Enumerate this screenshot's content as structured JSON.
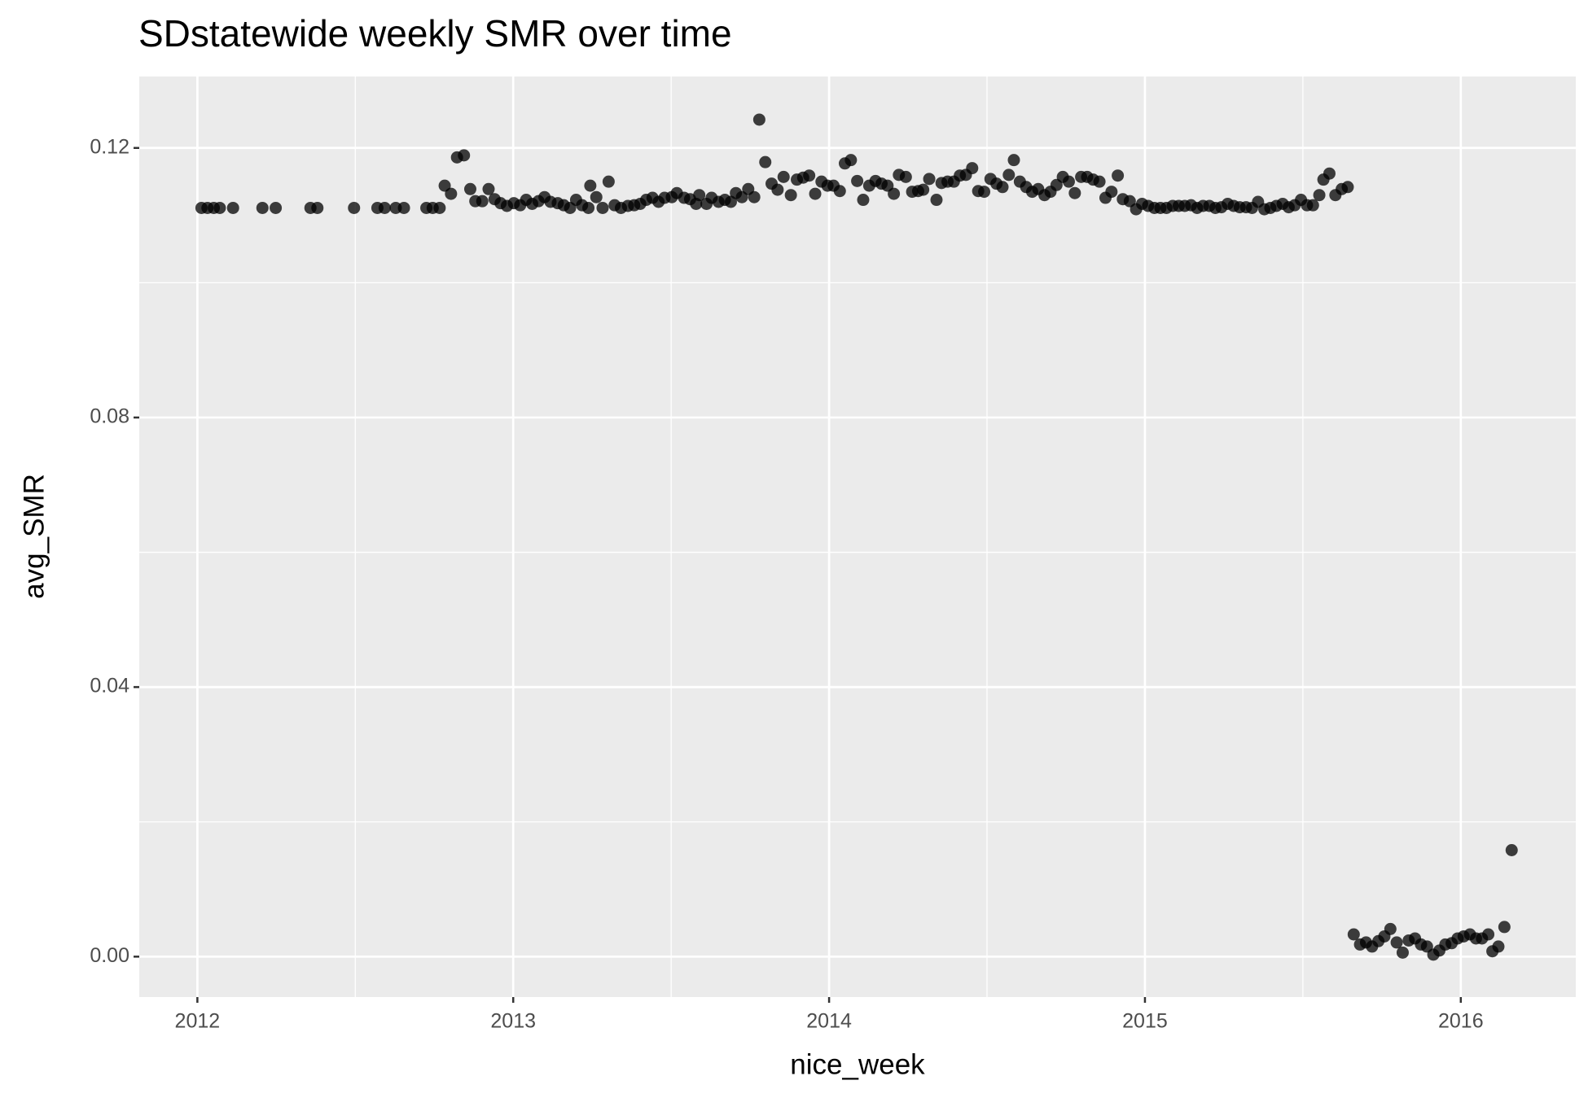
{
  "chart_data": {
    "type": "scatter",
    "title": "SDstatewide weekly SMR over time",
    "x_label": "nice_week",
    "y_label": "avg_SMR",
    "color": "#000000",
    "alpha": 0.75,
    "grid": true,
    "minor_grid": true,
    "xlim": [
      2011.816,
      2016.364
    ],
    "xticks": [
      2012,
      2013,
      2014,
      2015,
      2016
    ],
    "ylim": [
      -0.006,
      0.1306
    ],
    "yticks": [
      {
        "value": 0,
        "label": "0.00"
      },
      {
        "value": 0.04,
        "label": "0.04"
      },
      {
        "value": 0.08,
        "label": "0.08"
      },
      {
        "value": 0.12,
        "label": "0.12"
      }
    ],
    "x": [
      2012.013,
      2012.032,
      2012.052,
      2012.071,
      2012.113,
      2012.206,
      2012.248,
      2012.358,
      2012.38,
      2012.496,
      2012.57,
      2012.593,
      2012.628,
      2012.654,
      2012.725,
      2012.745,
      2012.767,
      2012.783,
      2012.803,
      2012.822,
      2012.844,
      2012.864,
      2012.88,
      2012.902,
      2012.922,
      2012.941,
      2012.96,
      2012.98,
      2013.002,
      2013.022,
      2013.041,
      2013.06,
      2013.08,
      2013.099,
      2013.118,
      2013.141,
      2013.16,
      2013.18,
      2013.199,
      2013.218,
      2013.238,
      2013.244,
      2013.263,
      2013.283,
      2013.302,
      2013.321,
      2013.341,
      2013.363,
      2013.383,
      2013.402,
      2013.421,
      2013.441,
      2013.46,
      2013.479,
      2013.502,
      2013.518,
      2013.541,
      2013.56,
      2013.579,
      2013.589,
      2013.612,
      2013.628,
      2013.65,
      2013.67,
      2013.689,
      2013.705,
      2013.724,
      2013.744,
      2013.763,
      2013.779,
      2013.798,
      2013.818,
      2013.837,
      2013.856,
      2013.879,
      2013.898,
      2013.918,
      2013.937,
      2013.956,
      2013.976,
      2013.995,
      2014.014,
      2014.034,
      2014.05,
      2014.069,
      2014.089,
      2014.108,
      2014.127,
      2014.147,
      2014.166,
      2014.185,
      2014.205,
      2014.221,
      2014.243,
      2014.263,
      2014.282,
      2014.298,
      2014.317,
      2014.34,
      2014.356,
      2014.375,
      2014.395,
      2014.414,
      2014.433,
      2014.453,
      2014.472,
      2014.491,
      2014.511,
      2014.53,
      2014.549,
      2014.569,
      2014.585,
      2014.604,
      2014.624,
      2014.643,
      2014.662,
      2014.682,
      2014.701,
      2014.72,
      2014.74,
      2014.759,
      2014.778,
      2014.798,
      2014.817,
      2014.836,
      2014.856,
      2014.875,
      2014.894,
      2014.914,
      2014.93,
      2014.952,
      2014.972,
      2014.991,
      2015.01,
      2015.03,
      2015.049,
      2015.068,
      2015.088,
      2015.107,
      2015.126,
      2015.146,
      2015.165,
      2015.184,
      2015.204,
      2015.223,
      2015.242,
      2015.262,
      2015.281,
      2015.3,
      2015.32,
      2015.339,
      2015.358,
      2015.378,
      2015.397,
      2015.416,
      2015.436,
      2015.455,
      2015.474,
      2015.494,
      2015.513,
      2015.532,
      2015.552,
      2015.565,
      2015.584,
      2015.603,
      2015.623,
      2015.642,
      2015.661,
      2015.681,
      2015.7,
      2015.719,
      2015.739,
      2015.758,
      2015.777,
      2015.797,
      2015.816,
      2015.835,
      2015.855,
      2015.874,
      2015.893,
      2015.913,
      2015.932,
      2015.951,
      2015.971,
      2015.99,
      2016.009,
      2016.029,
      2016.048,
      2016.067,
      2016.087,
      2016.1,
      2016.119,
      2016.138,
      2016.161
    ],
    "values": [
      0.1111,
      0.1111,
      0.1111,
      0.1111,
      0.1111,
      0.1111,
      0.1111,
      0.1111,
      0.1111,
      0.1111,
      0.1111,
      0.1111,
      0.1111,
      0.1111,
      0.1111,
      0.1111,
      0.1111,
      0.1144,
      0.1132,
      0.1186,
      0.1189,
      0.1139,
      0.1121,
      0.1121,
      0.1139,
      0.1124,
      0.1118,
      0.1114,
      0.1118,
      0.1115,
      0.1123,
      0.1117,
      0.1121,
      0.1127,
      0.112,
      0.1118,
      0.1115,
      0.1111,
      0.1123,
      0.1115,
      0.1111,
      0.1144,
      0.1127,
      0.1111,
      0.115,
      0.1115,
      0.1111,
      0.1114,
      0.1115,
      0.1117,
      0.1123,
      0.1126,
      0.112,
      0.1126,
      0.1127,
      0.1133,
      0.1126,
      0.1124,
      0.1117,
      0.113,
      0.1117,
      0.1126,
      0.112,
      0.1123,
      0.112,
      0.1133,
      0.1127,
      0.1139,
      0.1127,
      0.1242,
      0.1179,
      0.1147,
      0.1138,
      0.1157,
      0.113,
      0.1153,
      0.1156,
      0.1159,
      0.1132,
      0.115,
      0.1144,
      0.1144,
      0.1136,
      0.1177,
      0.1182,
      0.1151,
      0.1123,
      0.1144,
      0.1151,
      0.1147,
      0.1144,
      0.1132,
      0.116,
      0.1157,
      0.1135,
      0.1136,
      0.1138,
      0.1154,
      0.1123,
      0.1148,
      0.115,
      0.115,
      0.1159,
      0.116,
      0.117,
      0.1136,
      0.1135,
      0.1154,
      0.1147,
      0.1142,
      0.116,
      0.1182,
      0.115,
      0.1142,
      0.1135,
      0.1139,
      0.113,
      0.1135,
      0.1145,
      0.1157,
      0.115,
      0.1133,
      0.1157,
      0.1157,
      0.1153,
      0.115,
      0.1126,
      0.1135,
      0.1159,
      0.1124,
      0.1121,
      0.1109,
      0.1117,
      0.1114,
      0.1111,
      0.1111,
      0.1111,
      0.1114,
      0.1114,
      0.1114,
      0.1115,
      0.1111,
      0.1114,
      0.1114,
      0.1111,
      0.1112,
      0.1117,
      0.1114,
      0.1112,
      0.1112,
      0.1111,
      0.112,
      0.1109,
      0.1111,
      0.1114,
      0.1117,
      0.1112,
      0.1115,
      0.1123,
      0.1115,
      0.1115,
      0.113,
      0.1153,
      0.1162,
      0.113,
      0.1139,
      0.1142,
      0.0033,
      0.0018,
      0.0021,
      0.0015,
      0.0023,
      0.003,
      0.0041,
      0.0021,
      0.0006,
      0.0024,
      0.0027,
      0.0018,
      0.0015,
      0.0003,
      0.0009,
      0.0018,
      0.002,
      0.0027,
      0.003,
      0.0033,
      0.0027,
      0.0027,
      0.0033,
      0.0008,
      0.0015,
      0.0044,
      0.0158
    ]
  }
}
